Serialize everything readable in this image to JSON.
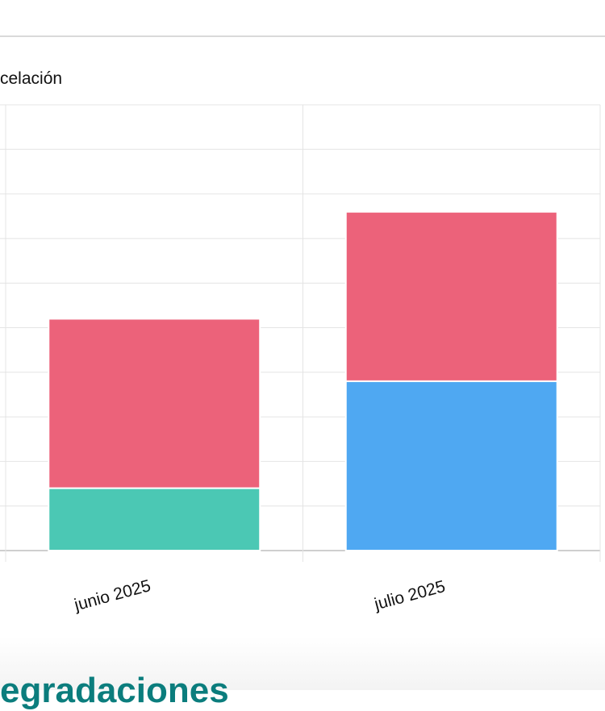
{
  "legend": {
    "partial_label": "celación"
  },
  "section": {
    "heading_partial": "egradaciones"
  },
  "chart_data": {
    "type": "bar",
    "stacked": true,
    "categories": [
      "junio 2025",
      "julio 2025"
    ],
    "series": [
      {
        "color": "#4BC8B4",
        "values": [
          1.4,
          0
        ]
      },
      {
        "color": "#4FA8F2",
        "values": [
          0,
          3.8
        ]
      },
      {
        "color": "#EC627A",
        "values": [
          3.8,
          3.8
        ]
      }
    ],
    "ylim": [
      0,
      10
    ],
    "grid": true,
    "xlabel": "",
    "ylabel": ""
  }
}
